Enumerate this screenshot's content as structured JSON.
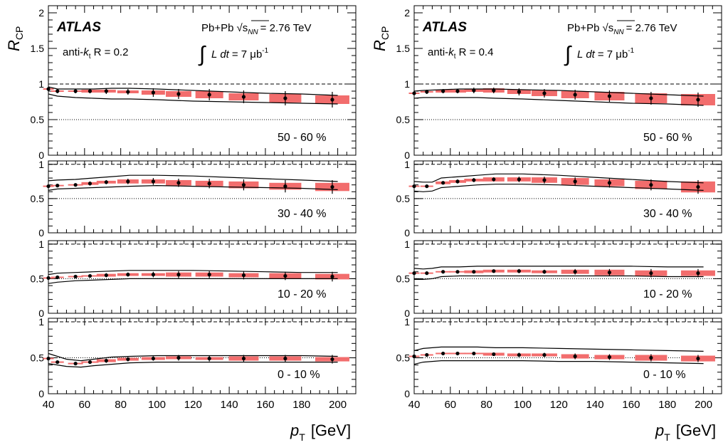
{
  "figure": {
    "experiment": "ATLAS",
    "system": "Pb+Pb",
    "sqrt_s": "√s",
    "sqrt_sub": "NN",
    "energy": "= 2.76 TeV",
    "int_sym": "∫",
    "lumi_L": "L",
    "lumi_dt": "dt",
    "lumi_eq": "= 7 μb",
    "lumi_exp": "-1",
    "ylabel_R": "R",
    "ylabel_sub": "CP",
    "xlabel_p": "p",
    "xlabel_sub": "T",
    "xlabel_unit": "[GeV]"
  },
  "chart_data": [
    {
      "type": "scatter",
      "panel": "anti-kt R = 0.2",
      "jet_label": {
        "pre": "anti-",
        "k": "k",
        "sub": "t",
        "post": " R = 0.2"
      },
      "xlim": [
        40,
        210
      ],
      "x_ticks": [
        "40",
        "60",
        "80",
        "100",
        "120",
        "140",
        "160",
        "180",
        "200"
      ],
      "reference_line": 1,
      "grid": false,
      "rows": [
        {
          "centrality": "50 - 60 %",
          "ylim": [
            0,
            2.1
          ],
          "y_ticks": [
            "0",
            "0.5",
            "1",
            "1.5",
            "2"
          ],
          "x": [
            40,
            45,
            55,
            63,
            72,
            84,
            98,
            112,
            129,
            148,
            171,
            197
          ],
          "y": [
            0.93,
            0.9,
            0.9,
            0.9,
            0.9,
            0.89,
            0.88,
            0.86,
            0.85,
            0.82,
            0.8,
            0.78
          ],
          "err": [
            0.02,
            0.03,
            0.03,
            0.03,
            0.04,
            0.04,
            0.06,
            0.07,
            0.08,
            0.09,
            0.1,
            0.11
          ],
          "syst_half_width": [
            0.01,
            0.01,
            0.01,
            0.02,
            0.02,
            0.02,
            0.03,
            0.04,
            0.05,
            0.05,
            0.06,
            0.06
          ],
          "band_x": [
            40,
            45,
            55,
            65,
            75,
            85,
            100,
            120,
            140,
            160,
            180,
            200
          ],
          "band_hi": [
            0.96,
            0.93,
            0.93,
            0.93,
            0.94,
            0.94,
            0.93,
            0.91,
            0.89,
            0.87,
            0.86,
            0.84
          ],
          "band_lo": [
            0.86,
            0.83,
            0.81,
            0.8,
            0.79,
            0.79,
            0.78,
            0.76,
            0.75,
            0.74,
            0.73,
            0.72
          ]
        },
        {
          "centrality": "30 - 40 %",
          "ylim": [
            0,
            1.05
          ],
          "y_ticks": [
            "0",
            "0.5",
            "1"
          ],
          "x": [
            40,
            45,
            55,
            63,
            72,
            84,
            98,
            112,
            129,
            148,
            171,
            197
          ],
          "y": [
            0.68,
            0.69,
            0.7,
            0.72,
            0.74,
            0.75,
            0.75,
            0.73,
            0.72,
            0.7,
            0.68,
            0.67
          ],
          "err": [
            0.02,
            0.02,
            0.02,
            0.03,
            0.03,
            0.04,
            0.05,
            0.06,
            0.07,
            0.08,
            0.09,
            0.1
          ],
          "syst_half_width": [
            0.01,
            0.01,
            0.01,
            0.02,
            0.02,
            0.03,
            0.03,
            0.04,
            0.04,
            0.05,
            0.05,
            0.06
          ],
          "band_x": [
            40,
            45,
            55,
            65,
            75,
            85,
            100,
            120,
            140,
            160,
            180,
            200
          ],
          "band_hi": [
            0.76,
            0.77,
            0.78,
            0.8,
            0.82,
            0.84,
            0.84,
            0.83,
            0.81,
            0.79,
            0.77,
            0.75
          ],
          "band_lo": [
            0.62,
            0.64,
            0.65,
            0.66,
            0.67,
            0.68,
            0.69,
            0.68,
            0.67,
            0.66,
            0.65,
            0.63
          ]
        },
        {
          "centrality": "10 - 20 %",
          "ylim": [
            0,
            1.05
          ],
          "y_ticks": [
            "0",
            "0.5",
            "1"
          ],
          "x": [
            40,
            45,
            55,
            63,
            72,
            84,
            98,
            112,
            129,
            148,
            171,
            197
          ],
          "y": [
            0.51,
            0.52,
            0.53,
            0.54,
            0.55,
            0.56,
            0.56,
            0.56,
            0.56,
            0.55,
            0.54,
            0.53
          ],
          "err": [
            0.02,
            0.02,
            0.02,
            0.02,
            0.03,
            0.03,
            0.04,
            0.05,
            0.05,
            0.06,
            0.06,
            0.07
          ],
          "syst_half_width": [
            0.01,
            0.01,
            0.01,
            0.01,
            0.02,
            0.02,
            0.02,
            0.03,
            0.03,
            0.03,
            0.04,
            0.04
          ],
          "band_x": [
            40,
            45,
            55,
            65,
            75,
            85,
            100,
            120,
            140,
            160,
            180,
            200
          ],
          "band_hi": [
            0.56,
            0.58,
            0.59,
            0.6,
            0.61,
            0.62,
            0.62,
            0.62,
            0.61,
            0.6,
            0.59,
            0.59
          ],
          "band_lo": [
            0.43,
            0.45,
            0.47,
            0.48,
            0.49,
            0.5,
            0.5,
            0.5,
            0.5,
            0.5,
            0.5,
            0.5
          ]
        },
        {
          "centrality": "0 - 10 %",
          "ylim": [
            0,
            1.05
          ],
          "y_ticks": [
            "0",
            "0.5",
            "1"
          ],
          "x": [
            40,
            45,
            55,
            63,
            72,
            84,
            98,
            112,
            129,
            148,
            171,
            197
          ],
          "y": [
            0.49,
            0.44,
            0.42,
            0.44,
            0.46,
            0.48,
            0.49,
            0.5,
            0.49,
            0.49,
            0.49,
            0.48
          ],
          "err": [
            0.02,
            0.02,
            0.02,
            0.02,
            0.03,
            0.03,
            0.03,
            0.04,
            0.04,
            0.05,
            0.05,
            0.06
          ],
          "syst_half_width": [
            0.01,
            0.01,
            0.01,
            0.01,
            0.02,
            0.02,
            0.02,
            0.02,
            0.02,
            0.03,
            0.03,
            0.03
          ],
          "band_x": [
            40,
            45,
            50,
            58,
            65,
            75,
            85,
            100,
            120,
            140,
            160,
            180,
            200
          ],
          "band_hi": [
            0.56,
            0.52,
            0.48,
            0.46,
            0.48,
            0.51,
            0.52,
            0.53,
            0.53,
            0.53,
            0.53,
            0.53,
            0.52
          ],
          "band_lo": [
            0.42,
            0.4,
            0.38,
            0.37,
            0.39,
            0.41,
            0.43,
            0.44,
            0.44,
            0.44,
            0.44,
            0.44,
            0.44
          ]
        }
      ]
    },
    {
      "type": "scatter",
      "panel": "anti-kt R = 0.4",
      "jet_label": {
        "pre": "anti-",
        "k": "k",
        "sub": "t",
        "post": " R = 0.4"
      },
      "xlim": [
        40,
        210
      ],
      "x_ticks": [
        "40",
        "60",
        "80",
        "100",
        "120",
        "140",
        "160",
        "180",
        "200"
      ],
      "reference_line": 1,
      "grid": false,
      "rows": [
        {
          "centrality": "50 - 60 %",
          "ylim": [
            0,
            2.1
          ],
          "y_ticks": [
            "0",
            "0.5",
            "1",
            "1.5",
            "2"
          ],
          "x": [
            40,
            47,
            56,
            64,
            73,
            84,
            98,
            112,
            129,
            148,
            171,
            197
          ],
          "y": [
            0.87,
            0.89,
            0.9,
            0.9,
            0.91,
            0.91,
            0.89,
            0.87,
            0.85,
            0.83,
            0.8,
            0.78
          ],
          "err": [
            0.02,
            0.03,
            0.03,
            0.03,
            0.04,
            0.04,
            0.05,
            0.06,
            0.07,
            0.08,
            0.09,
            0.1
          ],
          "syst_half_width": [
            0.01,
            0.01,
            0.02,
            0.02,
            0.02,
            0.03,
            0.03,
            0.04,
            0.05,
            0.06,
            0.07,
            0.08
          ],
          "band_x": [
            40,
            45,
            55,
            65,
            75,
            85,
            100,
            120,
            140,
            160,
            180,
            200
          ],
          "band_hi": [
            0.9,
            0.91,
            0.92,
            0.93,
            0.93,
            0.93,
            0.92,
            0.91,
            0.89,
            0.87,
            0.85,
            0.83
          ],
          "band_lo": [
            0.8,
            0.81,
            0.81,
            0.81,
            0.81,
            0.8,
            0.79,
            0.77,
            0.75,
            0.73,
            0.72,
            0.7
          ]
        },
        {
          "centrality": "30 - 40 %",
          "ylim": [
            0,
            1.05
          ],
          "y_ticks": [
            "0",
            "0.5",
            "1"
          ],
          "x": [
            40,
            47,
            56,
            64,
            73,
            84,
            98,
            112,
            129,
            148,
            171,
            197
          ],
          "y": [
            0.68,
            0.68,
            0.73,
            0.75,
            0.77,
            0.78,
            0.78,
            0.77,
            0.75,
            0.73,
            0.7,
            0.67
          ],
          "err": [
            0.02,
            0.02,
            0.02,
            0.03,
            0.03,
            0.03,
            0.04,
            0.05,
            0.06,
            0.07,
            0.08,
            0.1
          ],
          "syst_half_width": [
            0.01,
            0.01,
            0.02,
            0.02,
            0.02,
            0.03,
            0.03,
            0.04,
            0.05,
            0.05,
            0.06,
            0.08
          ],
          "band_x": [
            40,
            45,
            50,
            55,
            65,
            75,
            85,
            100,
            120,
            140,
            160,
            180,
            200
          ],
          "band_hi": [
            0.75,
            0.74,
            0.74,
            0.8,
            0.82,
            0.84,
            0.86,
            0.86,
            0.84,
            0.81,
            0.78,
            0.75,
            0.73
          ],
          "band_lo": [
            0.61,
            0.6,
            0.61,
            0.66,
            0.68,
            0.7,
            0.71,
            0.71,
            0.7,
            0.68,
            0.66,
            0.64,
            0.62
          ]
        },
        {
          "centrality": "10 - 20 %",
          "ylim": [
            0,
            1.05
          ],
          "y_ticks": [
            "0",
            "0.5",
            "1"
          ],
          "x": [
            40,
            47,
            56,
            64,
            73,
            84,
            98,
            112,
            129,
            148,
            171,
            197
          ],
          "y": [
            0.58,
            0.58,
            0.6,
            0.6,
            0.6,
            0.61,
            0.61,
            0.6,
            0.6,
            0.59,
            0.58,
            0.58
          ],
          "err": [
            0.02,
            0.02,
            0.02,
            0.02,
            0.02,
            0.02,
            0.03,
            0.03,
            0.04,
            0.05,
            0.06,
            0.06
          ],
          "syst_half_width": [
            0.01,
            0.01,
            0.01,
            0.01,
            0.02,
            0.02,
            0.02,
            0.02,
            0.03,
            0.04,
            0.04,
            0.04
          ],
          "band_x": [
            40,
            45,
            50,
            55,
            65,
            75,
            85,
            100,
            120,
            140,
            160,
            180,
            200
          ],
          "band_hi": [
            0.65,
            0.64,
            0.65,
            0.67,
            0.67,
            0.68,
            0.68,
            0.68,
            0.68,
            0.68,
            0.68,
            0.67,
            0.67
          ],
          "band_lo": [
            0.49,
            0.49,
            0.5,
            0.53,
            0.54,
            0.54,
            0.54,
            0.54,
            0.54,
            0.54,
            0.54,
            0.53,
            0.53
          ]
        },
        {
          "centrality": "0 - 10 %",
          "ylim": [
            0,
            1.05
          ],
          "y_ticks": [
            "0",
            "0.5",
            "1"
          ],
          "x": [
            40,
            47,
            56,
            64,
            73,
            84,
            98,
            112,
            129,
            148,
            171,
            197
          ],
          "y": [
            0.52,
            0.54,
            0.56,
            0.56,
            0.56,
            0.55,
            0.54,
            0.54,
            0.52,
            0.51,
            0.5,
            0.49
          ],
          "err": [
            0.02,
            0.02,
            0.02,
            0.02,
            0.02,
            0.02,
            0.03,
            0.03,
            0.04,
            0.04,
            0.05,
            0.05
          ],
          "syst_half_width": [
            0.01,
            0.01,
            0.01,
            0.01,
            0.01,
            0.02,
            0.02,
            0.02,
            0.03,
            0.03,
            0.04,
            0.04
          ],
          "band_x": [
            40,
            45,
            50,
            55,
            65,
            75,
            85,
            100,
            120,
            140,
            160,
            180,
            200
          ],
          "band_hi": [
            0.6,
            0.63,
            0.64,
            0.65,
            0.65,
            0.65,
            0.64,
            0.64,
            0.63,
            0.62,
            0.61,
            0.6,
            0.59
          ],
          "band_lo": [
            0.41,
            0.44,
            0.45,
            0.46,
            0.46,
            0.46,
            0.46,
            0.46,
            0.45,
            0.45,
            0.44,
            0.43,
            0.42
          ]
        }
      ]
    }
  ]
}
